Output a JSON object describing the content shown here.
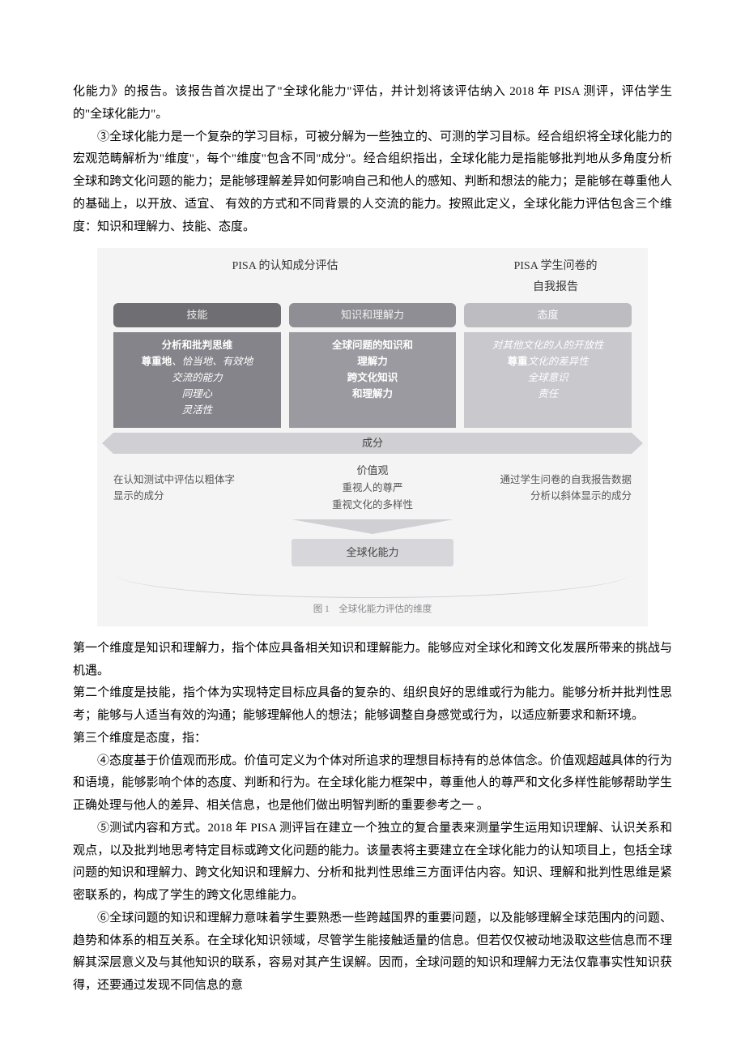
{
  "p1": "化能力》的报告。该报告首次提出了\"全球化能力\"评估，并计划将该评估纳入 2018 年 PISA 测评，评估学生的\"全球化能力\"。",
  "p2": "③全球化能力是一个复杂的学习目标，可被分解为一些独立的、可测的学习目标。经合组织将全球化能力的宏观范畴解析为\"维度\"，每个\"维度\"包含不同\"成分\"。经合组织指出，全球化能力是指能够批判地从多角度分析全球和跨文化问题的能力；是能够理解差异如何影响自己和他人的感知、判断和想法的能力；是能够在尊重他人的基础上，以开放、适宜、 有效的方式和不同背景的人交流的能力。按照此定义，全球化能力评估包含三个维度：知识和理解力、技能、态度。",
  "diagram": {
    "header_left": "PISA 的认知成分评估",
    "header_right_l1": "PISA 学生问卷的",
    "header_right_l2": "自我报告",
    "pill": {
      "a": "技能",
      "b": "知识和理解力",
      "c": "态度"
    },
    "colA": {
      "bold1": "分析和批判思维",
      "bold2_pref": "尊重地",
      "ital1": "、恰当地、有效地",
      "ital2": "交流的能力",
      "ital3": "同理心",
      "ital4": "灵活性"
    },
    "colB": {
      "b1": "全球问题的知识和",
      "b2": "理解力",
      "b3": "跨文化知识",
      "b4": "和理解力"
    },
    "colC": {
      "i1": "对其他文化的人的开放性",
      "i2_pref": "尊重",
      "i2_suf": "文化的差异性",
      "i3": "全球意识",
      "i4": "责任"
    },
    "band": "成分",
    "mid_left_l1": "在认知测试中评估以粗体字",
    "mid_left_l2": "显示的成分",
    "mid_center_hd": "价值观",
    "mid_center_l1": "重视人的尊严",
    "mid_center_l2": "重视文化的多样性",
    "mid_right_l1": "通过学生问卷的自我报告数据",
    "mid_right_l2": "分析以斜体显示的成分",
    "result": "全球化能力",
    "caption": "图 1　全球化能力评估的维度"
  },
  "d1": "第一个维度是知识和理解力，指个体应具备相关知识和理解能力。能够应对全球化和跨文化发展所带来的挑战与机遇。",
  "d2": "第二个维度是技能，指个体为实现特定目标应具备的复杂的、组织良好的思维或行为能力。能够分析并批判性思考；能够与人适当有效的沟通；能够理解他人的想法；能够调整自身感觉或行为，以适应新要求和新环境。",
  "d3": "第三个维度是态度，指：",
  "p4": "④态度基于价值观而形成。价值可定义为个体对所追求的理想目标持有的总体信念。价值观超越具体的行为和语境，能够影响个体的态度、判断和行为。在全球化能力框架中，尊重他人的尊严和文化多样性能够帮助学生正确处理与他人的差异、相关信息，也是他们做出明智判断的重要参考之一 。",
  "p5": "⑤测试内容和方式。2018 年 PISA 测评旨在建立一个独立的复合量表来测量学生运用知识理解、认识关系和观点，以及批判地思考特定目标或跨文化问题的能力。该量表将主要建立在全球化能力的认知项目上，包括全球问题的知识和理解力、跨文化知识和理解力、分析和批判性思维三方面评估内容。知识、理解和批判性思维是紧密联系的，构成了学生的跨文化思维能力。",
  "p6": "⑥全球问题的知识和理解力意味着学生要熟悉一些跨越国界的重要问题，以及能够理解全球范围内的问题、趋势和体系的相互关系。在全球化知识领域，尽管学生能接触适量的信息。但若仅仅被动地汲取这些信息而不理解其深层意义及与其他知识的联系，容易对其产生误解。因而，全球问题的知识和理解力无法仅靠事实性知识获得，还要通过发现不同信息的意"
}
